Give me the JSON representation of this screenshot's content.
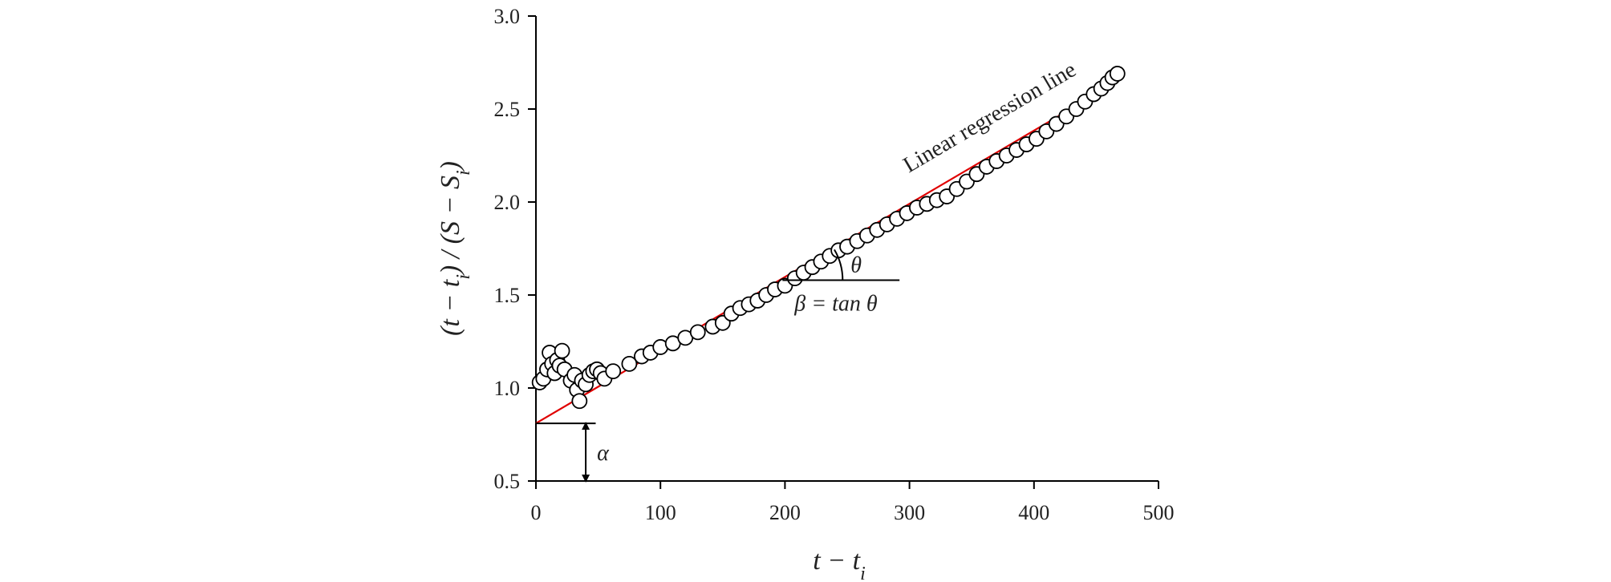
{
  "chart_data": {
    "type": "scatter",
    "xlabel": "t − t",
    "xlabel_sub": "i",
    "ylabel_parts": [
      "(t − t",
      "i",
      ") / (S − S",
      "i",
      ")"
    ],
    "xlim": [
      0,
      500
    ],
    "ylim": [
      0.5,
      3.0
    ],
    "x_ticks": [
      0,
      100,
      200,
      300,
      400,
      500
    ],
    "y_ticks": [
      0.5,
      1.0,
      1.5,
      2.0,
      2.5,
      3.0
    ],
    "x_tick_labels": [
      "0",
      "100",
      "200",
      "300",
      "400",
      "500"
    ],
    "y_tick_labels": [
      "0.5",
      "1.0",
      "1.5",
      "2.0",
      "2.5",
      "3.0"
    ],
    "grid": false,
    "series": [
      {
        "marker": "open-circle",
        "color": "#000000",
        "points": [
          [
            3,
            1.03
          ],
          [
            6,
            1.05
          ],
          [
            9,
            1.1
          ],
          [
            11,
            1.19
          ],
          [
            13,
            1.13
          ],
          [
            15,
            1.08
          ],
          [
            17,
            1.15
          ],
          [
            19,
            1.12
          ],
          [
            21,
            1.2
          ],
          [
            23,
            1.1
          ],
          [
            28,
            1.04
          ],
          [
            31,
            1.07
          ],
          [
            33,
            0.99
          ],
          [
            35,
            0.93
          ],
          [
            37,
            1.04
          ],
          [
            40,
            1.02
          ],
          [
            43,
            1.07
          ],
          [
            46,
            1.09
          ],
          [
            49,
            1.1
          ],
          [
            52,
            1.08
          ],
          [
            55,
            1.05
          ],
          [
            62,
            1.09
          ],
          [
            75,
            1.13
          ],
          [
            85,
            1.17
          ],
          [
            92,
            1.19
          ],
          [
            100,
            1.22
          ],
          [
            110,
            1.24
          ],
          [
            120,
            1.27
          ],
          [
            130,
            1.3
          ],
          [
            142,
            1.33
          ],
          [
            150,
            1.35
          ],
          [
            157,
            1.4
          ],
          [
            164,
            1.43
          ],
          [
            171,
            1.45
          ],
          [
            178,
            1.47
          ],
          [
            185,
            1.5
          ],
          [
            192,
            1.53
          ],
          [
            200,
            1.55
          ],
          [
            208,
            1.59
          ],
          [
            215,
            1.62
          ],
          [
            222,
            1.65
          ],
          [
            229,
            1.68
          ],
          [
            236,
            1.71
          ],
          [
            243,
            1.74
          ],
          [
            250,
            1.76
          ],
          [
            258,
            1.79
          ],
          [
            266,
            1.82
          ],
          [
            274,
            1.85
          ],
          [
            282,
            1.88
          ],
          [
            290,
            1.91
          ],
          [
            298,
            1.94
          ],
          [
            306,
            1.97
          ],
          [
            314,
            1.99
          ],
          [
            322,
            2.01
          ],
          [
            330,
            2.03
          ],
          [
            338,
            2.07
          ],
          [
            346,
            2.11
          ],
          [
            354,
            2.15
          ],
          [
            362,
            2.19
          ],
          [
            370,
            2.22
          ],
          [
            378,
            2.25
          ],
          [
            386,
            2.28
          ],
          [
            394,
            2.31
          ],
          [
            402,
            2.34
          ],
          [
            410,
            2.38
          ],
          [
            418,
            2.42
          ],
          [
            426,
            2.46
          ],
          [
            434,
            2.5
          ],
          [
            441,
            2.54
          ],
          [
            448,
            2.58
          ],
          [
            454,
            2.61
          ],
          [
            459,
            2.64
          ],
          [
            463,
            2.67
          ],
          [
            467,
            2.69
          ]
        ]
      }
    ],
    "regression_line": {
      "label": "Linear regression line",
      "color": "#e00000",
      "x": [
        0,
        465
      ],
      "y": [
        0.81,
        2.64
      ]
    },
    "annotations": {
      "alpha_label": "α",
      "alpha_value": 0.81,
      "alpha_segment_x": [
        0,
        48
      ],
      "alpha_arrow_x": 40,
      "theta_label": "θ",
      "beta_label": "β = tan θ",
      "theta_vertex": [
        198,
        1.58
      ],
      "theta_base_end_x": 292
    }
  }
}
